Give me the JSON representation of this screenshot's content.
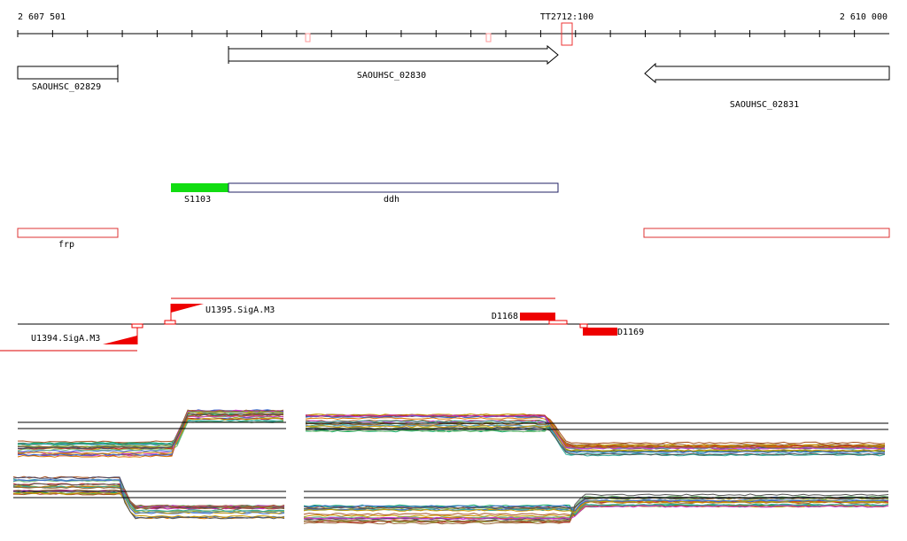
{
  "ruler": {
    "start": "2 607 501",
    "marker": "TT2712:100",
    "end": "2 610 000"
  },
  "genes": [
    "SAOUHSC_02829",
    "SAOUHSC_02830",
    "SAOUHSC_02831"
  ],
  "features": {
    "s": "S1103",
    "gene": "ddh",
    "other": "frp"
  },
  "promoters": [
    "U1395.SigA.M3",
    "U1394.SigA.M3"
  ],
  "terminators": [
    "D1168",
    "D1169"
  ]
}
